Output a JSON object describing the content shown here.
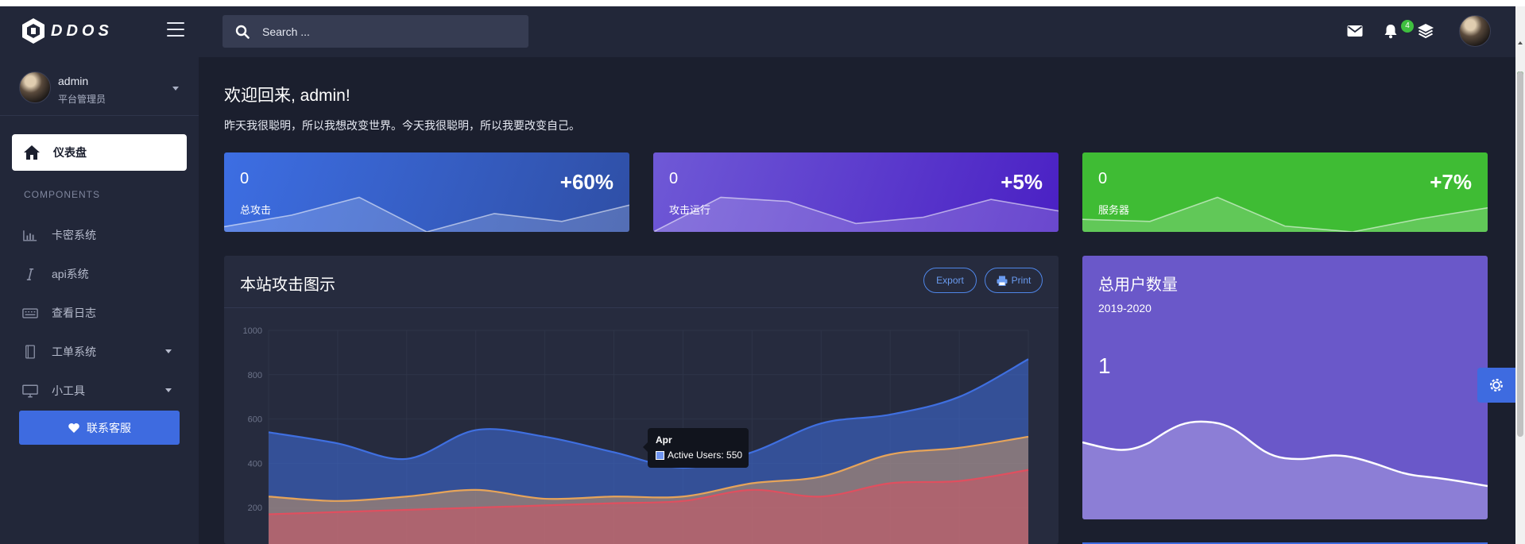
{
  "app": {
    "logo_text": "DDOS"
  },
  "sidebar": {
    "user": {
      "name": "admin",
      "role": "平台管理员"
    },
    "active_item": {
      "label": "仪表盘",
      "icon": "home-icon"
    },
    "section_label": "COMPONENTS",
    "items": [
      {
        "label": "卡密系统",
        "icon": "bar-chart-icon",
        "has_submenu": false
      },
      {
        "label": "api系统",
        "icon": "italic-i-icon",
        "has_submenu": false
      },
      {
        "label": "查看日志",
        "icon": "keyboard-icon",
        "has_submenu": false
      },
      {
        "label": "工单系统",
        "icon": "notebook-icon",
        "has_submenu": true
      },
      {
        "label": "小工具",
        "icon": "monitor-icon",
        "has_submenu": true
      }
    ],
    "contact_button": {
      "label": "联系客服",
      "icon": "heart-icon"
    }
  },
  "header": {
    "search": {
      "placeholder": "Search ...",
      "value": ""
    },
    "notification_count": "4",
    "icons": [
      "envelope-icon",
      "bell-icon",
      "layers-icon"
    ]
  },
  "main": {
    "welcome": "欢迎回来, admin!",
    "motto": "昨天我很聪明，所以我想改变世界。今天我很聪明，所以我要改变自己。",
    "stats": [
      {
        "value": "0",
        "label": "总攻击",
        "percent": "+60%",
        "color_from": "#3d6ee3",
        "color_to": "#2f4fa6",
        "spark": [
          0.1,
          0.32,
          0.66,
          0.0,
          0.35,
          0.2,
          0.51
        ]
      },
      {
        "value": "0",
        "label": "攻击运行",
        "percent": "+5%",
        "color_from": "#6f59d6",
        "color_to": "#4a20c4",
        "spark": [
          0.0,
          0.66,
          0.58,
          0.16,
          0.28,
          0.62,
          0.4
        ]
      },
      {
        "value": "0",
        "label": "服务器",
        "percent": "+7%",
        "color_from": "#3fbc34",
        "color_to": "#3fbc34",
        "spark": [
          0.24,
          0.2,
          0.66,
          0.11,
          0.0,
          0.25,
          0.46
        ]
      }
    ],
    "attack_panel": {
      "title": "本站攻击图示",
      "export_label": "Export",
      "print_label": "Print",
      "tooltip": {
        "title": "Apr",
        "label": "Active Users: 550"
      }
    },
    "users_card": {
      "title": "总用户数量",
      "range": "2019-2020",
      "value": "1"
    }
  },
  "chart_data": {
    "type": "area",
    "title": "本站攻击图示",
    "x_tick_count": 12,
    "ylim": [
      0,
      1000
    ],
    "y_ticks": [
      1000,
      800,
      600,
      400,
      200
    ],
    "grid": true,
    "series": [
      {
        "name": "Active Users",
        "color": "#3f6fe0",
        "values": [
          540,
          490,
          420,
          550,
          520,
          450,
          380,
          450,
          580,
          620,
          700,
          870
        ]
      },
      {
        "name": "",
        "color": "#e6a45a",
        "values": [
          250,
          230,
          250,
          280,
          240,
          250,
          250,
          310,
          340,
          440,
          470,
          520
        ]
      },
      {
        "name": "",
        "color": "#e04f5f",
        "values": [
          170,
          180,
          190,
          200,
          210,
          220,
          230,
          280,
          250,
          310,
          320,
          370
        ]
      }
    ],
    "tooltip": {
      "x": "Apr",
      "series": "Active Users",
      "value": 550
    }
  },
  "colors": {
    "accent": "#3e6be0",
    "sidebar_bg": "#222739",
    "page_bg": "#1b1f2e",
    "panel_bg": "#262b3e",
    "users_card_bg": "#6a58c9"
  }
}
